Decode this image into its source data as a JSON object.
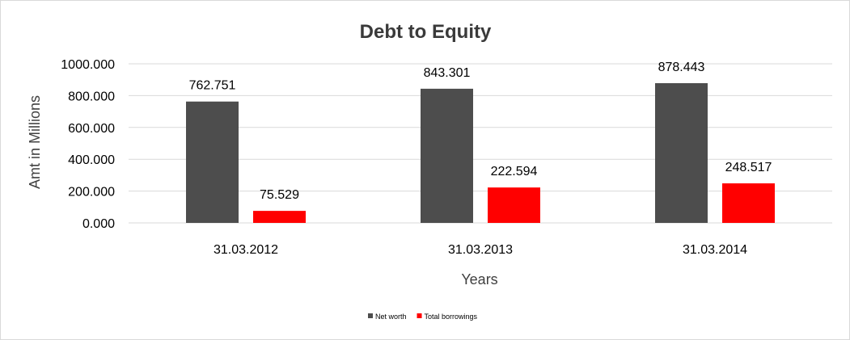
{
  "chart_data": {
    "type": "bar",
    "title": "Debt to Equity",
    "xlabel": "Years",
    "ylabel": "Amt in Millions",
    "categories": [
      "31.03.2012",
      "31.03.2013",
      "31.03.2014"
    ],
    "series": [
      {
        "name": "Net worth",
        "color": "#4d4d4d",
        "values": [
          762.751,
          843.301,
          878.443
        ],
        "labels": [
          "762.751",
          "843.301",
          "878.443"
        ]
      },
      {
        "name": "Total borrowings",
        "color": "#ff0000",
        "values": [
          75.529,
          222.594,
          248.517
        ],
        "labels": [
          "75.529",
          "222.594",
          "248.517"
        ]
      }
    ],
    "ylim": [
      0,
      1000
    ],
    "yticks": [
      0,
      200,
      400,
      600,
      800,
      1000
    ],
    "ytick_labels": [
      "0.000",
      "200.000",
      "400.000",
      "600.000",
      "800.000",
      "1000.000"
    ],
    "grid": true,
    "legend_position": "bottom"
  }
}
